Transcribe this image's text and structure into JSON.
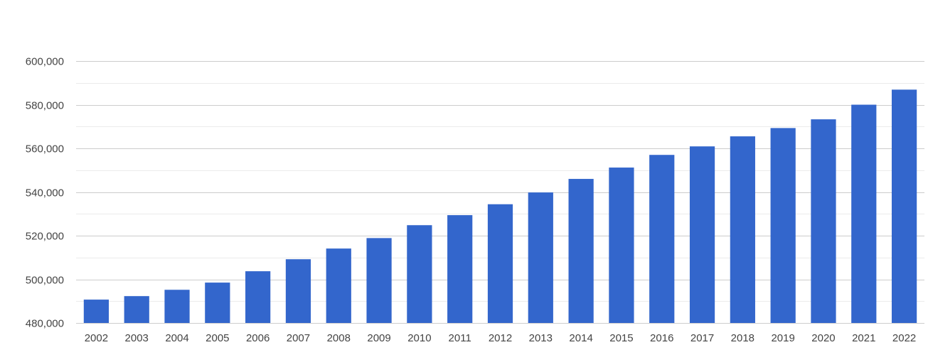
{
  "chart_data": {
    "type": "bar",
    "title": "",
    "xlabel": "",
    "ylabel": "",
    "categories": [
      "2002",
      "2003",
      "2004",
      "2005",
      "2006",
      "2007",
      "2008",
      "2009",
      "2010",
      "2011",
      "2012",
      "2013",
      "2014",
      "2015",
      "2016",
      "2017",
      "2018",
      "2019",
      "2020",
      "2021",
      "2022"
    ],
    "values": [
      490700,
      492300,
      495200,
      498500,
      503700,
      509200,
      514100,
      518900,
      524800,
      529400,
      534400,
      539800,
      546000,
      551200,
      557000,
      560900,
      565500,
      569300,
      573300,
      580000,
      586900
    ],
    "ylim": [
      480000,
      600000
    ],
    "yticks": [
      480000,
      500000,
      520000,
      540000,
      560000,
      580000,
      600000
    ],
    "ytick_labels": [
      "480,000",
      "500,000",
      "520,000",
      "540,000",
      "560,000",
      "580,000",
      "600,000"
    ],
    "grid": true,
    "legend": "none",
    "bar_color": "#3366cc",
    "grid_color": "#cccccc",
    "minor_grid_color": "#ebebeb"
  }
}
